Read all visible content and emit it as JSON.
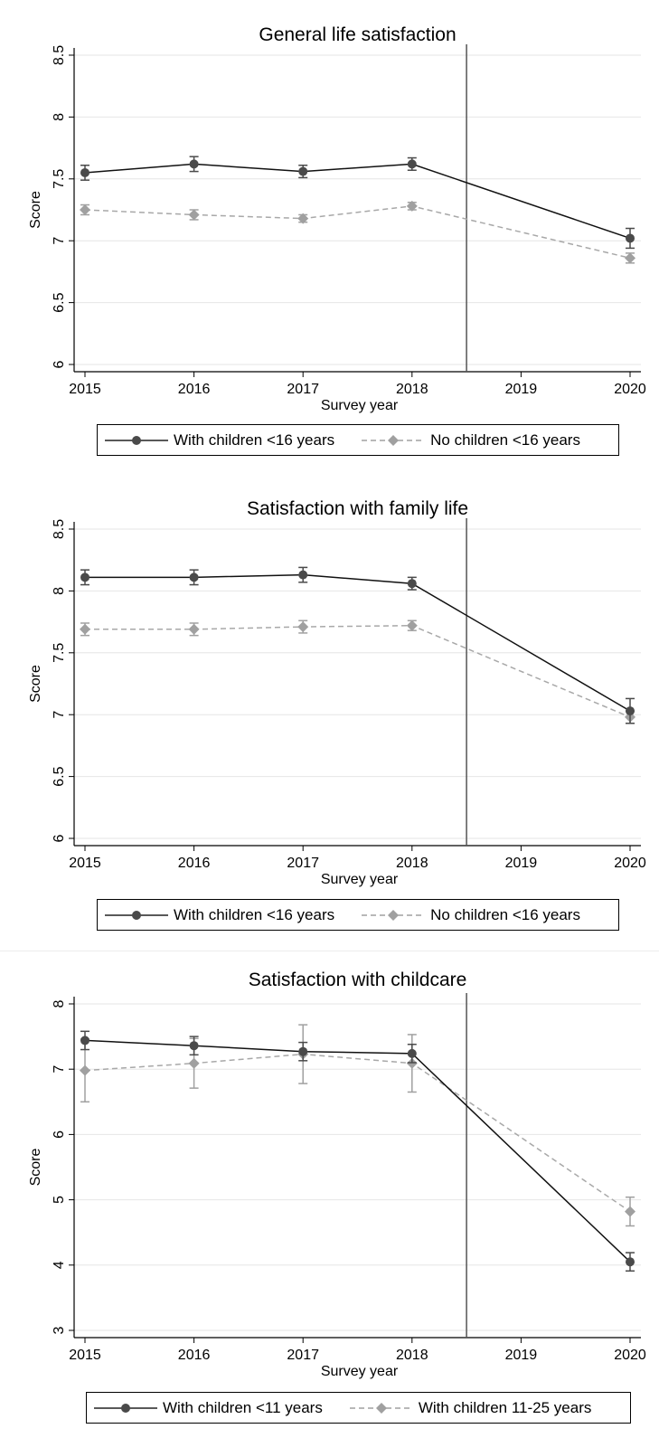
{
  "chart_data": [
    {
      "type": "line",
      "title": "General life satisfaction",
      "xlabel": "Survey year",
      "ylabel": "Score",
      "xlim": [
        2015,
        2020
      ],
      "ylim": [
        6,
        8.5
      ],
      "x_ticks": [
        "2015",
        "2016",
        "2017",
        "2018",
        "2019",
        "2020"
      ],
      "y_ticks": [
        "6",
        "6.5",
        "7",
        "7.5",
        "8",
        "8.5"
      ],
      "reference_line_x": 2018.5,
      "grid": true,
      "legend_position": "bottom",
      "series": [
        {
          "name": "With children <16 years",
          "color": "#4a4a4a",
          "style": "solid",
          "marker": "circle",
          "x": [
            2015,
            2016,
            2017,
            2018,
            2020
          ],
          "y": [
            7.55,
            7.62,
            7.56,
            7.62,
            7.02
          ],
          "err": [
            0.06,
            0.06,
            0.05,
            0.05,
            0.08
          ]
        },
        {
          "name": "No children <16 years",
          "color": "#a0a0a0",
          "style": "dashed",
          "marker": "diamond",
          "x": [
            2015,
            2016,
            2017,
            2018,
            2020
          ],
          "y": [
            7.25,
            7.21,
            7.18,
            7.28,
            6.86
          ],
          "err": [
            0.04,
            0.04,
            0.03,
            0.03,
            0.04
          ]
        }
      ]
    },
    {
      "type": "line",
      "title": "Satisfaction with family life",
      "xlabel": "Survey year",
      "ylabel": "Score",
      "xlim": [
        2015,
        2020
      ],
      "ylim": [
        6,
        8.5
      ],
      "x_ticks": [
        "2015",
        "2016",
        "2017",
        "2018",
        "2019",
        "2020"
      ],
      "y_ticks": [
        "6",
        "6.5",
        "7",
        "7.5",
        "8",
        "8.5"
      ],
      "reference_line_x": 2018.5,
      "grid": true,
      "legend_position": "bottom",
      "series": [
        {
          "name": "With children <16 years",
          "color": "#4a4a4a",
          "style": "solid",
          "marker": "circle",
          "x": [
            2015,
            2016,
            2017,
            2018,
            2020
          ],
          "y": [
            8.11,
            8.11,
            8.13,
            8.06,
            7.03
          ],
          "err": [
            0.06,
            0.06,
            0.06,
            0.05,
            0.1
          ]
        },
        {
          "name": "No children <16 years",
          "color": "#a0a0a0",
          "style": "dashed",
          "marker": "diamond",
          "x": [
            2015,
            2016,
            2017,
            2018,
            2020
          ],
          "y": [
            7.69,
            7.69,
            7.71,
            7.72,
            6.98
          ],
          "err": [
            0.05,
            0.05,
            0.05,
            0.04,
            0.05
          ]
        }
      ]
    },
    {
      "type": "line",
      "title": "Satisfaction with childcare",
      "xlabel": "Survey year",
      "ylabel": "Score",
      "xlim": [
        2015,
        2020
      ],
      "ylim": [
        3,
        8
      ],
      "x_ticks": [
        "2015",
        "2016",
        "2017",
        "2018",
        "2019",
        "2020"
      ],
      "y_ticks": [
        "3",
        "4",
        "5",
        "6",
        "7",
        "8"
      ],
      "reference_line_x": 2018.5,
      "grid": true,
      "legend_position": "bottom",
      "series": [
        {
          "name": "With children <11 years",
          "color": "#4a4a4a",
          "style": "solid",
          "marker": "circle",
          "x": [
            2015,
            2016,
            2017,
            2018,
            2020
          ],
          "y": [
            7.44,
            7.36,
            7.27,
            7.24,
            4.05
          ],
          "err": [
            0.14,
            0.14,
            0.14,
            0.14,
            0.14
          ]
        },
        {
          "name": "With children 11-25 years",
          "color": "#a0a0a0",
          "style": "dashed",
          "marker": "diamond",
          "x": [
            2015,
            2016,
            2017,
            2018,
            2020
          ],
          "y": [
            6.98,
            7.09,
            7.23,
            7.09,
            4.82
          ],
          "err": [
            0.48,
            0.38,
            0.45,
            0.44,
            0.22
          ]
        }
      ]
    }
  ]
}
